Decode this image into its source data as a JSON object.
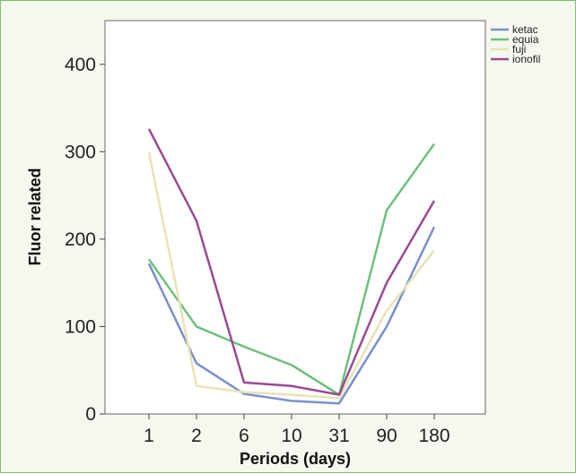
{
  "chart_data": {
    "type": "line",
    "title": "",
    "xlabel": "Periods (days)",
    "ylabel": "Fluor related",
    "categories": [
      "1",
      "2",
      "6",
      "10",
      "31",
      "90",
      "180"
    ],
    "ylim": [
      0,
      450
    ],
    "yticks": [
      "0",
      "100",
      "200",
      "300",
      "400"
    ],
    "grid": false,
    "legend_position": "top-right",
    "series": [
      {
        "name": "ketac",
        "color": "#7a8fcf",
        "values": [
          172,
          58,
          23,
          15,
          12,
          100,
          214
        ]
      },
      {
        "name": "equia",
        "color": "#6cc07a",
        "values": [
          177,
          100,
          77,
          56,
          22,
          233,
          309
        ]
      },
      {
        "name": "fuji",
        "color": "#e8e3b4",
        "values": [
          299,
          32,
          25,
          22,
          18,
          118,
          187
        ]
      },
      {
        "name": "ionofil",
        "color": "#9a4a92",
        "values": [
          326,
          221,
          36,
          32,
          22,
          150,
          244
        ]
      }
    ]
  }
}
